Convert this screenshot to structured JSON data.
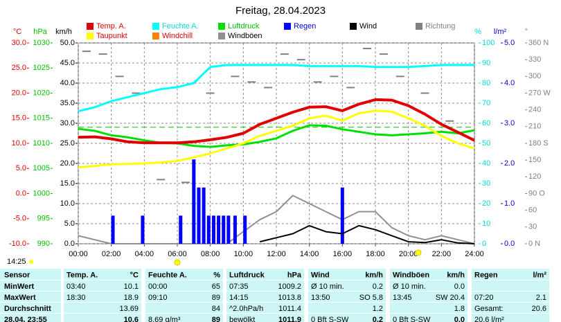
{
  "chart_data": {
    "type": "line",
    "title": "Freitag, 28.04.2023",
    "time_label": "14:25",
    "x": [
      0,
      1,
      2,
      3,
      4,
      5,
      6,
      7,
      8,
      9,
      10,
      11,
      12,
      13,
      14,
      15,
      16,
      17,
      18,
      19,
      20,
      21,
      22,
      23,
      24
    ],
    "xlim": [
      0,
      24
    ],
    "xticks": [
      {
        "value": 0,
        "label": "00:00"
      },
      {
        "value": 2,
        "label": "02:00"
      },
      {
        "value": 4,
        "label": "04:00"
      },
      {
        "value": 6,
        "label": "06:00"
      },
      {
        "value": 8,
        "label": "08:00"
      },
      {
        "value": 10,
        "label": "10:00"
      },
      {
        "value": 12,
        "label": "12:00"
      },
      {
        "value": 14,
        "label": "14:00"
      },
      {
        "value": 16,
        "label": "16:00"
      },
      {
        "value": 18,
        "label": "18:00"
      },
      {
        "value": 20,
        "label": "20:00"
      },
      {
        "value": 22,
        "label": "22:00"
      },
      {
        "value": 24,
        "label": "24:00"
      }
    ],
    "grid": true,
    "axes": [
      {
        "id": "temp",
        "label": "°C",
        "color": "#e00000",
        "lim": [
          -10,
          30
        ],
        "ticks": [
          {
            "value": 30,
            "label": "30.0"
          },
          {
            "value": 25,
            "label": "25.0"
          },
          {
            "value": 20,
            "label": "20.0"
          },
          {
            "value": 15,
            "label": "15.0"
          },
          {
            "value": 10,
            "label": "10.0"
          },
          {
            "value": 5,
            "label": "5.0"
          },
          {
            "value": 0,
            "label": "0.0"
          },
          {
            "value": -5,
            "label": "-5.0"
          },
          {
            "value": -10,
            "label": "-10.0"
          }
        ]
      },
      {
        "id": "hpa",
        "label": "hPa",
        "color": "#00c000",
        "lim": [
          990,
          1030
        ],
        "ticks": [
          1030,
          1025,
          1020,
          1015,
          1010,
          1005,
          1000,
          995,
          990
        ]
      },
      {
        "id": "kmh",
        "label": "km/h",
        "color": "#000000",
        "lim": [
          0,
          50
        ],
        "grid": true,
        "ticks": [
          {
            "value": 50,
            "label": "50.0"
          },
          {
            "value": 45,
            "label": "45.0"
          },
          {
            "value": 40,
            "label": "40.0"
          },
          {
            "value": 35,
            "label": "35.0"
          },
          {
            "value": 30,
            "label": "30.0"
          },
          {
            "value": 25,
            "label": "25.0"
          },
          {
            "value": 20,
            "label": "20.0"
          },
          {
            "value": 15,
            "label": "15.0"
          },
          {
            "value": 10,
            "label": "10.0"
          },
          {
            "value": 5,
            "label": "5.0"
          },
          {
            "value": 0,
            "label": "0.0"
          }
        ]
      },
      {
        "id": "pct",
        "label": "%",
        "color": "#00d8d8",
        "lim": [
          0,
          100
        ],
        "ticks": [
          100,
          90,
          80,
          70,
          60,
          50,
          40,
          30,
          20,
          10,
          0
        ]
      },
      {
        "id": "rain",
        "label": "l/m²",
        "color": "#0000e0",
        "lim": [
          0,
          5
        ],
        "ticks": [
          {
            "value": 5,
            "label": "5.0"
          },
          {
            "value": 4,
            "label": "4.0"
          },
          {
            "value": 3,
            "label": "3.0"
          },
          {
            "value": 2,
            "label": "2.0"
          },
          {
            "value": 1,
            "label": "1.0"
          },
          {
            "value": 0,
            "label": "0.0"
          }
        ]
      },
      {
        "id": "dir",
        "label": "°",
        "color": "#808080",
        "lim": [
          0,
          360
        ],
        "ticks": [
          {
            "value": 360,
            "label": "360 N"
          },
          330,
          300,
          {
            "value": 270,
            "label": "270 W"
          },
          240,
          210,
          {
            "value": 180,
            "label": "180 S"
          },
          150,
          120,
          {
            "value": 90,
            "label": "90 O"
          },
          60,
          30,
          {
            "value": 0,
            "label": "0 N"
          }
        ]
      }
    ],
    "series": [
      {
        "name": "Temp. A.",
        "color": "#e00000",
        "label_color": "#e00000",
        "axis": "temp",
        "width": 4,
        "values": [
          11.2,
          11.3,
          10.9,
          10.3,
          10.1,
          10.1,
          10.1,
          10.3,
          10.7,
          11.2,
          12.0,
          13.8,
          15.0,
          16.2,
          17.2,
          17.3,
          16.5,
          17.8,
          18.7,
          18.6,
          17.5,
          15.8,
          13.8,
          12.2,
          10.6
        ]
      },
      {
        "name": "Feuchte A.",
        "color": "#00ffff",
        "label_color": "#00d8d8",
        "axis": "pct",
        "width": 3,
        "values": [
          66,
          68,
          71,
          73,
          75,
          77,
          78,
          80,
          88,
          89,
          89,
          89,
          89,
          89,
          88.5,
          88.5,
          88.5,
          88.5,
          88,
          88,
          88,
          88.5,
          89,
          89,
          89
        ]
      },
      {
        "name": "Luftdruck",
        "color": "#00e000",
        "label_color": "#00c000",
        "axis": "hpa",
        "width": 3,
        "values": [
          1012.9,
          1012.5,
          1011.6,
          1011.2,
          1010.6,
          1010.1,
          1010.0,
          1009.5,
          1009.3,
          1009.6,
          1009.8,
          1010.3,
          1011.0,
          1012.5,
          1013.6,
          1013.5,
          1012.8,
          1012.3,
          1011.8,
          1011.6,
          1011.8,
          1012.0,
          1012.3,
          1012.0,
          1012.6
        ]
      },
      {
        "name": "Regen",
        "color": "#0000ff",
        "label_color": "#0000e0",
        "axis": "rain",
        "style": "bar",
        "x": [
          2.1,
          3.9,
          6.2,
          7.0,
          7.3,
          7.6,
          7.9,
          8.2,
          8.5,
          8.8,
          9.1,
          9.5,
          10.1,
          16.0
        ],
        "values": [
          0.7,
          0.7,
          0.7,
          2.1,
          1.4,
          1.4,
          0.7,
          0.7,
          0.7,
          0.7,
          0.7,
          0.7,
          0.7,
          1.4
        ]
      },
      {
        "name": "Wind",
        "color": "#000000",
        "label_color": "#000000",
        "axis": "kmh",
        "width": 2,
        "values": [
          null,
          null,
          null,
          null,
          null,
          null,
          null,
          null,
          null,
          null,
          null,
          0.5,
          1.5,
          2.5,
          4.5,
          3.0,
          2.5,
          4.5,
          3.5,
          2.0,
          0.5,
          0.3,
          1.0,
          0.2,
          0.0
        ]
      },
      {
        "name": "Richtung",
        "color": "#808080",
        "label_color": "#808080",
        "axis": "dir",
        "style": "dash",
        "x": [
          0.5,
          1.5,
          2.5,
          3.5,
          5.0,
          6.5,
          8.0,
          9.5,
          10.5,
          11.5,
          12.5,
          13.5,
          14.5,
          15.5,
          16.5,
          17.5,
          18.5,
          19.5,
          21.0,
          22.5
        ],
        "values": [
          345,
          340,
          300,
          270,
          115,
          110,
          270,
          300,
          290,
          280,
          340,
          330,
          290,
          300,
          280,
          350,
          340,
          300,
          270,
          220
        ]
      },
      {
        "name": "Taupunkt",
        "color": "#ffff00",
        "label_color": "#e00000",
        "axis": "temp",
        "width": 3,
        "values": [
          5.2,
          5.5,
          5.8,
          5.9,
          6.0,
          6.2,
          6.5,
          7.2,
          8.0,
          9.0,
          10.0,
          11.5,
          12.5,
          13.5,
          15.0,
          15.5,
          14.5,
          16.0,
          16.5,
          16.3,
          15.0,
          13.5,
          11.5,
          10.0,
          9.0
        ]
      },
      {
        "name": "Windchill",
        "color": "#ff8000",
        "label_color": "#e00000",
        "axis": "temp"
      },
      {
        "name": "Windböen",
        "color": "#909090",
        "label_color": "#000000",
        "axis": "kmh",
        "width": 2,
        "values": [
          2,
          1,
          0,
          0,
          0,
          0,
          0,
          0,
          0,
          0,
          3,
          6,
          8,
          12,
          10,
          8,
          6,
          8,
          8,
          4,
          2,
          1,
          2,
          1,
          0
        ]
      }
    ],
    "reference_line": {
      "value": 1013.2,
      "axis": "hpa",
      "color": "#00c000"
    },
    "sun": [
      6.0,
      20.6
    ]
  },
  "table": {
    "header": [
      "Sensor",
      "Temp. A.",
      "°C",
      "Feuchte A.",
      "%",
      "Luftdruck",
      "hPa",
      "Wind",
      "km/h",
      "Windböen",
      "km/h",
      "Regen",
      "l/m²"
    ],
    "rows": [
      [
        "MinWert",
        "03:40",
        "10.1",
        "00:00",
        "65",
        "07:35",
        "1009.2",
        "Ø 10 min.",
        "0.2",
        "Ø 10 min.",
        "0.0",
        null,
        null
      ],
      [
        "MaxWert",
        "18:30",
        "18.9",
        "09:10",
        "89",
        "14:15",
        "1013.8",
        "13:50",
        "SO 5.8",
        "13:45",
        "SW 20.4",
        "07:20",
        "2.1"
      ],
      [
        "Durchschnitt",
        null,
        "13.69",
        null,
        "84",
        "^2.0hPa/h",
        "1011.4",
        null,
        "1.2",
        null,
        "1.8",
        "Gesamt:",
        "20.6"
      ],
      [
        "28.04. 23:55",
        null,
        "10.6",
        "8.69 g/m³",
        "89",
        "bewölkt",
        "1011.9",
        "0 Bft S-SW",
        "0.2",
        "0 Bft S-SW",
        "0.0",
        "20.6 l/m²",
        null
      ]
    ]
  }
}
